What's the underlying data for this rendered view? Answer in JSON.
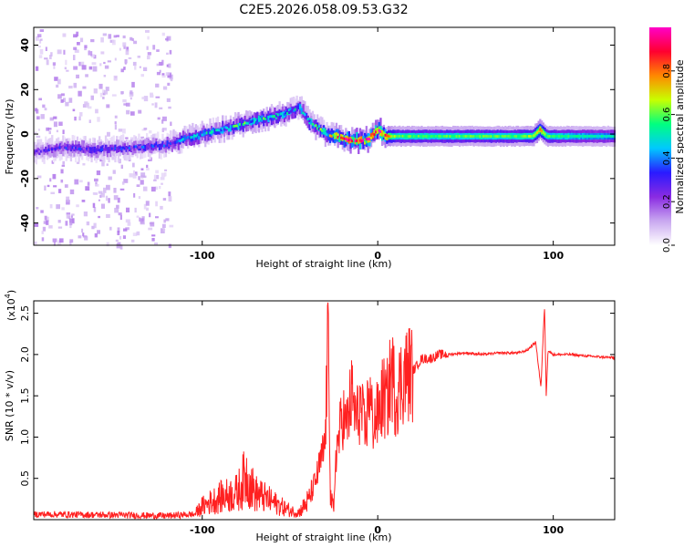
{
  "figure": {
    "title": "C2E5.2026.058.09.53.G32"
  },
  "chart_data": [
    {
      "type": "heatmap",
      "xlabel": "Height of straight line (km)",
      "ylabel": "Frequency (Hz)",
      "xlim": [
        -196,
        135
      ],
      "ylim": [
        -50,
        48
      ],
      "xticks": [
        -100,
        0,
        100
      ],
      "yticks": [
        -40,
        -20,
        0,
        20,
        40
      ],
      "grid": false,
      "colorbar": {
        "label": "Normalized spectral amplitude",
        "range": [
          0,
          1
        ],
        "ticks": [
          "0.0",
          "0.2",
          "0.4",
          "0.6",
          "0.8"
        ],
        "colormap": [
          "#ffffff",
          "#c9a8f0",
          "#8a2be2",
          "#2a1aff",
          "#00c8ff",
          "#00ff80",
          "#c8ff00",
          "#ff8800",
          "#ff0030",
          "#ff00c8"
        ]
      },
      "ridge": {
        "x": [
          -196,
          -180,
          -160,
          -140,
          -120,
          -110,
          -100,
          -90,
          -80,
          -70,
          -60,
          -50,
          -45,
          -40,
          -35,
          -30,
          -25,
          -20,
          -15,
          -10,
          -5,
          0,
          5,
          10,
          20,
          40,
          60,
          80,
          88,
          92,
          96,
          110,
          135
        ],
        "y": [
          -8,
          -6,
          -7,
          -6,
          -5,
          -2,
          0,
          2,
          4,
          6,
          8,
          10,
          12,
          6,
          3,
          0,
          -1,
          -2,
          -3,
          -3,
          -2,
          2,
          -1,
          -1,
          -1,
          -1,
          -1,
          -1,
          -1,
          2,
          -1,
          -1,
          -1
        ],
        "peak_amplitude": [
          0.25,
          0.3,
          0.3,
          0.3,
          0.35,
          0.4,
          0.45,
          0.45,
          0.5,
          0.5,
          0.5,
          0.45,
          0.45,
          0.5,
          0.5,
          0.55,
          0.7,
          0.8,
          0.9,
          0.85,
          0.8,
          0.9,
          0.8,
          0.6,
          0.6,
          0.6,
          0.6,
          0.6,
          0.65,
          0.8,
          0.6,
          0.55,
          0.5
        ]
      },
      "noise_region": {
        "x_start": -196,
        "x_end": -118
      }
    },
    {
      "type": "line",
      "xlabel": "Height of straight line (km)",
      "ylabel": "SNR (10 * v/v)",
      "y_multiplier": "(x10",
      "y_multiplier_exp": "4",
      "y_multiplier_close": ")",
      "xlim": [
        -196,
        135
      ],
      "ylim": [
        0,
        2.65
      ],
      "xticks": [
        -100,
        0,
        100
      ],
      "yticks": [
        0.5,
        1.0,
        1.5,
        2.0,
        2.5
      ],
      "grid": false,
      "color": "#ff2020",
      "series": [
        {
          "x": [
            -196,
            -150,
            -120,
            -105,
            -100,
            -90,
            -80,
            -75,
            -70,
            -65,
            -60,
            -55,
            -50,
            -45,
            -40,
            -35,
            -30,
            -28,
            -27,
            -25,
            -24,
            -22,
            -20,
            -18,
            -15,
            -12,
            -10,
            -7,
            -5,
            -3,
            0,
            3,
            5,
            8,
            10,
            15,
            20,
            25,
            30,
            35,
            40,
            50,
            60,
            70,
            80,
            85,
            90,
            93,
            95,
            96,
            97,
            100,
            110,
            120,
            135
          ],
          "y": [
            0.05,
            0.04,
            0.03,
            0.05,
            0.15,
            0.25,
            0.3,
            0.5,
            0.3,
            0.25,
            0.2,
            0.15,
            0.1,
            0.08,
            0.2,
            0.5,
            0.9,
            2.48,
            0.3,
            0.05,
            0.8,
            1.0,
            1.3,
            1.1,
            1.5,
            1.2,
            1.4,
            1.0,
            1.6,
            1.2,
            1.25,
            1.5,
            1.4,
            1.8,
            1.5,
            1.75,
            1.8,
            1.95,
            1.95,
            2.0,
            2.0,
            2.02,
            2.0,
            2.02,
            2.02,
            2.05,
            2.15,
            1.6,
            2.6,
            1.5,
            2.05,
            2.0,
            2.0,
            1.98,
            1.96
          ]
        }
      ]
    }
  ]
}
